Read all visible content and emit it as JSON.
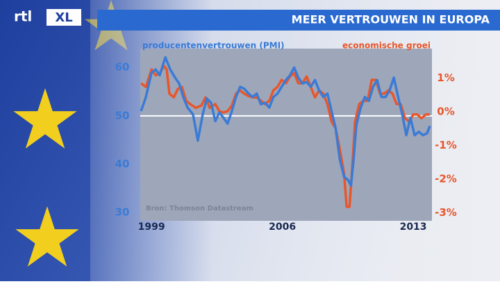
{
  "logo_text": "rtl",
  "logo_box": "XL",
  "chart_data": {
    "type": "line",
    "title": "MEER VERTROUWEN IN EUROPA",
    "source": "Bron: Thomson Datastream",
    "xlim": [
      1998.4,
      2014.0
    ],
    "xticks": [
      1999,
      2006,
      2013
    ],
    "ylim": [
      28.3,
      63.9
    ],
    "yticks": [
      30,
      40,
      50,
      60
    ],
    "hline": 50,
    "y2lim": [
      -3.24,
      1.88
    ],
    "y2ticks": [
      {
        "value": 1,
        "label": "1%"
      },
      {
        "value": 0,
        "label": "0%"
      },
      {
        "value": -1,
        "label": "-1%"
      },
      {
        "value": -2,
        "label": "-2%"
      },
      {
        "value": -3,
        "label": "-3%"
      }
    ],
    "series": [
      {
        "name": "producentenvertrouwen (PMI)",
        "color": "#3a7bd5",
        "x": [
          1998.44,
          1998.7,
          1999.0,
          1999.22,
          1999.44,
          1999.74,
          2000.0,
          2000.26,
          2000.48,
          2000.7,
          2000.93,
          2001.22,
          2001.48,
          2001.74,
          2001.96,
          2002.19,
          2002.41,
          2002.63,
          2002.85,
          2003.07,
          2003.3,
          2003.52,
          2003.74,
          2003.96,
          2004.19,
          2004.41,
          2004.63,
          2004.85,
          2005.07,
          2005.3,
          2005.52,
          2005.74,
          2005.96,
          2006.19,
          2006.41,
          2006.63,
          2006.85,
          2007.07,
          2007.3,
          2007.52,
          2007.74,
          2007.96,
          2008.19,
          2008.41,
          2008.63,
          2008.85,
          2009.07,
          2009.3,
          2009.52,
          2009.67,
          2009.81,
          2009.96,
          2010.19,
          2010.41,
          2010.63,
          2010.85,
          2011.07,
          2011.3,
          2011.52,
          2011.74,
          2011.96,
          2012.19,
          2012.41,
          2012.63,
          2012.85,
          2013.07,
          2013.3,
          2013.52,
          2013.74,
          2013.89
        ],
        "values": [
          51.0,
          53.9,
          58.9,
          59.6,
          58.4,
          62.1,
          59.6,
          57.9,
          56.7,
          53.9,
          51.7,
          50.3,
          44.9,
          50.3,
          53.6,
          52.7,
          48.9,
          50.7,
          49.6,
          48.4,
          51.0,
          53.9,
          56.0,
          55.6,
          54.6,
          53.9,
          54.6,
          52.4,
          52.7,
          51.7,
          53.9,
          54.6,
          56.0,
          57.4,
          58.4,
          60.0,
          57.9,
          56.7,
          57.0,
          56.0,
          57.4,
          55.3,
          53.9,
          54.6,
          51.0,
          47.4,
          41.0,
          37.4,
          36.7,
          35.6,
          41.0,
          48.1,
          51.7,
          53.9,
          53.1,
          56.0,
          57.4,
          53.9,
          53.9,
          55.3,
          57.9,
          53.9,
          50.3,
          46.0,
          49.6,
          46.0,
          46.7,
          46.0,
          46.4,
          47.9
        ]
      },
      {
        "name": "economische groei",
        "color": "#e8562a",
        "axis": "y2",
        "x": [
          1998.44,
          1998.7,
          1999.0,
          1999.22,
          1999.44,
          1999.67,
          1999.81,
          1999.96,
          2000.19,
          2000.41,
          2000.63,
          2000.85,
          2001.07,
          2001.37,
          2001.67,
          2001.89,
          2002.11,
          2002.41,
          2002.63,
          2002.85,
          2003.07,
          2003.3,
          2003.52,
          2003.74,
          2003.96,
          2004.19,
          2004.41,
          2004.63,
          2004.85,
          2005.07,
          2005.3,
          2005.52,
          2005.74,
          2005.96,
          2006.19,
          2006.41,
          2006.63,
          2006.85,
          2007.07,
          2007.3,
          2007.52,
          2007.74,
          2007.96,
          2008.19,
          2008.41,
          2008.63,
          2008.85,
          2009.07,
          2009.3,
          2009.44,
          2009.59,
          2009.74,
          2009.89,
          2010.11,
          2010.33,
          2010.56,
          2010.78,
          2011.0,
          2011.22,
          2011.44,
          2011.67,
          2011.89,
          2012.11,
          2012.33,
          2012.56,
          2012.78,
          2013.0,
          2013.22,
          2013.44,
          2013.67,
          2013.89
        ],
        "values": [
          0.85,
          0.74,
          1.26,
          1.09,
          1.15,
          1.36,
          1.26,
          0.54,
          0.43,
          0.68,
          0.74,
          0.33,
          0.23,
          0.12,
          0.19,
          0.43,
          0.12,
          0.23,
          0.02,
          -0.02,
          0.02,
          0.19,
          0.54,
          0.64,
          0.54,
          0.47,
          0.43,
          0.43,
          0.33,
          0.23,
          0.33,
          0.64,
          0.74,
          0.95,
          0.85,
          1.05,
          1.15,
          0.85,
          0.85,
          1.05,
          0.74,
          0.43,
          0.64,
          0.54,
          0.23,
          -0.29,
          -0.49,
          -1.11,
          -1.84,
          -2.82,
          -2.82,
          -1.63,
          -0.29,
          0.23,
          0.33,
          0.33,
          0.95,
          0.95,
          0.54,
          0.54,
          0.64,
          0.54,
          0.23,
          0.23,
          -0.19,
          -0.29,
          -0.08,
          -0.08,
          -0.19,
          -0.08,
          -0.08
        ]
      }
    ]
  }
}
